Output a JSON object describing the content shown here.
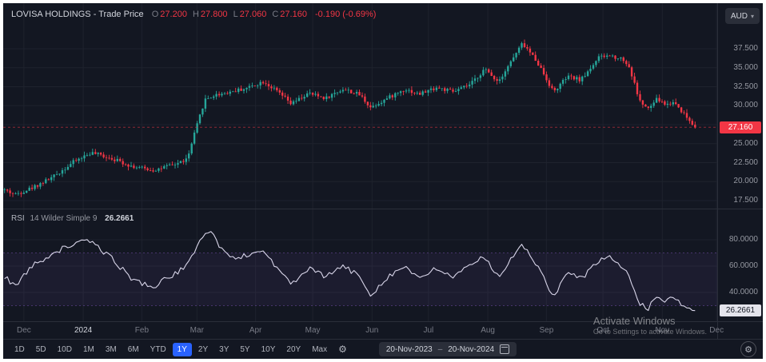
{
  "header": {
    "title": "LOVISA HOLDINGS - Trade Price",
    "ohlc": [
      {
        "key": "O",
        "value": "27.200"
      },
      {
        "key": "H",
        "value": "27.800"
      },
      {
        "key": "L",
        "value": "27.060"
      },
      {
        "key": "C",
        "value": "27.160"
      }
    ],
    "change": "-0.190 (-0.69%)",
    "currency": "AUD"
  },
  "icons": {
    "chevron_down": "▾",
    "gear": "⚙"
  },
  "price_axis": {
    "labels": [
      {
        "text": "37.500",
        "value": 37.5
      },
      {
        "text": "35.000",
        "value": 35
      },
      {
        "text": "32.500",
        "value": 32.5
      },
      {
        "text": "30.000",
        "value": 30
      },
      {
        "text": "25.000",
        "value": 25
      },
      {
        "text": "22.500",
        "value": 22.5
      },
      {
        "text": "20.000",
        "value": 20
      },
      {
        "text": "17.500",
        "value": 17.5
      }
    ],
    "gridlines": [
      37.5,
      35,
      32.5,
      30,
      27.5,
      25,
      22.5,
      20,
      17.5
    ],
    "last_price_label": "27.160",
    "last_price": 27.16
  },
  "rsi_header": {
    "name": "RSI",
    "params": "14 Wilder Simple 9",
    "value": "26.2661"
  },
  "rsi_axis": {
    "labels": [
      {
        "text": "80.0000",
        "value": 80
      },
      {
        "text": "60.0000",
        "value": 60
      },
      {
        "text": "40.0000",
        "value": 40
      }
    ],
    "value_badge": "26.2661"
  },
  "time_axis": {
    "labels": [
      {
        "text": "Dec",
        "pos": 0.029,
        "major": false
      },
      {
        "text": "2024",
        "pos": 0.112,
        "major": true
      },
      {
        "text": "Feb",
        "pos": 0.194,
        "major": false
      },
      {
        "text": "Mar",
        "pos": 0.271,
        "major": false
      },
      {
        "text": "Apr",
        "pos": 0.353,
        "major": false
      },
      {
        "text": "May",
        "pos": 0.433,
        "major": false
      },
      {
        "text": "Jun",
        "pos": 0.516,
        "major": false
      },
      {
        "text": "Jul",
        "pos": 0.595,
        "major": false
      },
      {
        "text": "Aug",
        "pos": 0.678,
        "major": false
      },
      {
        "text": "Sep",
        "pos": 0.76,
        "major": false
      },
      {
        "text": "Oct",
        "pos": 0.839,
        "major": false
      },
      {
        "text": "Nov",
        "pos": 0.922,
        "major": false
      },
      {
        "text": "Dec",
        "pos": 0.998,
        "major": false
      }
    ]
  },
  "toolbar": {
    "ranges": [
      "1D",
      "5D",
      "10D",
      "1M",
      "3M",
      "6M",
      "YTD",
      "1Y",
      "2Y",
      "3Y",
      "5Y",
      "10Y",
      "20Y",
      "Max"
    ],
    "active_range": "1Y",
    "date_from": "20-Nov-2023",
    "range_separator": "–",
    "date_to": "20-Nov-2024"
  },
  "watermark": {
    "line1": "Activate Windows",
    "line2": "Go to Settings to activate Windows."
  },
  "chart_data": {
    "type": "candlestick",
    "title": "LOVISA HOLDINGS - Trade Price",
    "timeframe": "1Y daily, 20-Nov-2023 to 20-Nov-2024",
    "currency": "AUD",
    "y_range": [
      16.5,
      39.5
    ],
    "y_gridstep": 2.5,
    "current_bar": {
      "open": 27.2,
      "high": 27.8,
      "low": 27.06,
      "close": 27.16,
      "change": -0.19,
      "change_pct": -0.69
    },
    "candle_count": 252,
    "price_trend_anchors": [
      [
        0,
        18.9
      ],
      [
        0.015,
        18.3
      ],
      [
        0.04,
        19.2
      ],
      [
        0.07,
        20.6
      ],
      [
        0.1,
        22.6
      ],
      [
        0.125,
        23.8
      ],
      [
        0.155,
        23.1
      ],
      [
        0.185,
        22.0
      ],
      [
        0.215,
        21.5
      ],
      [
        0.245,
        22.2
      ],
      [
        0.265,
        23.0
      ],
      [
        0.275,
        26.3
      ],
      [
        0.29,
        30.8
      ],
      [
        0.305,
        31.4
      ],
      [
        0.325,
        31.8
      ],
      [
        0.35,
        32.3
      ],
      [
        0.375,
        33.2
      ],
      [
        0.4,
        31.5
      ],
      [
        0.415,
        30.2
      ],
      [
        0.44,
        31.6
      ],
      [
        0.465,
        31.0
      ],
      [
        0.49,
        32.2
      ],
      [
        0.515,
        31.4
      ],
      [
        0.53,
        29.8
      ],
      [
        0.555,
        31.0
      ],
      [
        0.58,
        32.2
      ],
      [
        0.6,
        31.5
      ],
      [
        0.625,
        32.4
      ],
      [
        0.65,
        31.8
      ],
      [
        0.675,
        32.8
      ],
      [
        0.695,
        34.8
      ],
      [
        0.715,
        33.2
      ],
      [
        0.75,
        38.2
      ],
      [
        0.77,
        36.0
      ],
      [
        0.795,
        31.8
      ],
      [
        0.815,
        33.8
      ],
      [
        0.835,
        33.4
      ],
      [
        0.86,
        36.3
      ],
      [
        0.875,
        36.6
      ],
      [
        0.895,
        36.2
      ],
      [
        0.905,
        35.0
      ],
      [
        0.92,
        30.6
      ],
      [
        0.932,
        29.5
      ],
      [
        0.945,
        30.9
      ],
      [
        0.958,
        30.1
      ],
      [
        0.97,
        30.5
      ],
      [
        0.985,
        28.8
      ],
      [
        1,
        27.16
      ]
    ],
    "render_noise": {
      "seed": 42,
      "close_jitter": 0.5,
      "wick_extra": 0.5,
      "rsi_jitter": 4
    },
    "indicator": {
      "type": "line",
      "name": "RSI 14 Wilder Simple 9",
      "current": 26.2661,
      "y_range": [
        15,
        95
      ],
      "band": [
        30,
        70
      ],
      "rsi_trend_anchors": [
        [
          0,
          52
        ],
        [
          0.015,
          45
        ],
        [
          0.04,
          60
        ],
        [
          0.07,
          70
        ],
        [
          0.1,
          77
        ],
        [
          0.125,
          79
        ],
        [
          0.155,
          66
        ],
        [
          0.185,
          50
        ],
        [
          0.215,
          44
        ],
        [
          0.245,
          54
        ],
        [
          0.265,
          60
        ],
        [
          0.285,
          83
        ],
        [
          0.3,
          86
        ],
        [
          0.315,
          72
        ],
        [
          0.33,
          66
        ],
        [
          0.35,
          68
        ],
        [
          0.375,
          72
        ],
        [
          0.4,
          55
        ],
        [
          0.415,
          46
        ],
        [
          0.44,
          58
        ],
        [
          0.465,
          52
        ],
        [
          0.49,
          60
        ],
        [
          0.515,
          52
        ],
        [
          0.53,
          38
        ],
        [
          0.555,
          52
        ],
        [
          0.58,
          60
        ],
        [
          0.6,
          50
        ],
        [
          0.625,
          58
        ],
        [
          0.65,
          52
        ],
        [
          0.675,
          60
        ],
        [
          0.695,
          68
        ],
        [
          0.715,
          52
        ],
        [
          0.75,
          76
        ],
        [
          0.77,
          62
        ],
        [
          0.795,
          36
        ],
        [
          0.815,
          55
        ],
        [
          0.835,
          50
        ],
        [
          0.86,
          64
        ],
        [
          0.875,
          67
        ],
        [
          0.895,
          60
        ],
        [
          0.905,
          50
        ],
        [
          0.92,
          32
        ],
        [
          0.932,
          27
        ],
        [
          0.945,
          38
        ],
        [
          0.958,
          33
        ],
        [
          0.97,
          36
        ],
        [
          0.985,
          29
        ],
        [
          1,
          26.27
        ]
      ]
    },
    "colors": {
      "up": "#26a69a",
      "down": "#f23645",
      "rsi_line": "#d9d6ea",
      "rsi_band": "#7e57c2",
      "last_price_badge": "#f23645",
      "active_button": "#2962ff",
      "grid": "#1e222d",
      "axis_text": "#9598a1",
      "background": "#131722"
    }
  }
}
